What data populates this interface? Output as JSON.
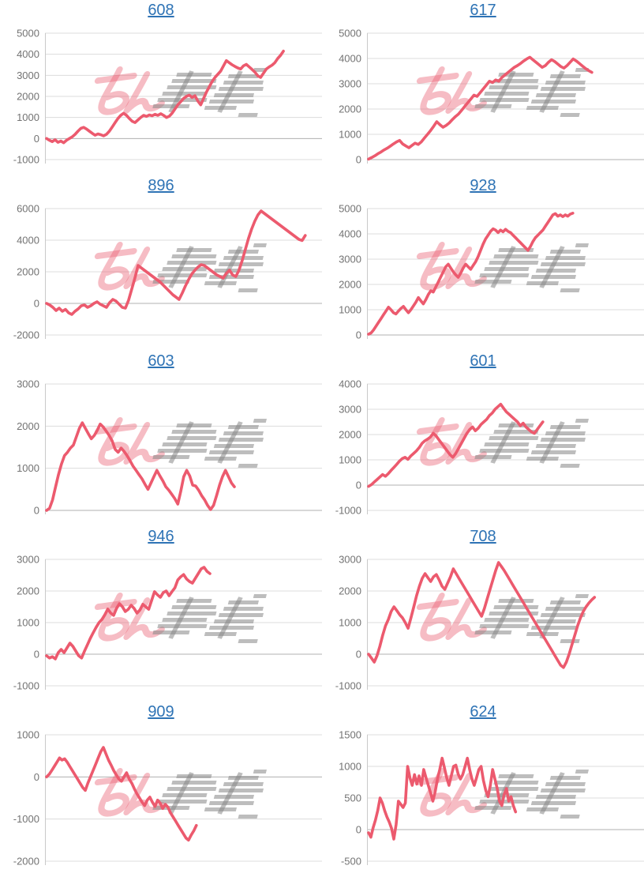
{
  "page": {
    "background": "#ffffff"
  },
  "watermark": {
    "text": "みんレポ",
    "pink_text": "みん",
    "gray_text": "レポ",
    "pink_color": "rgba(233,95,115,0.42)",
    "gray_color": "rgba(135,135,135,0.55)"
  },
  "style": {
    "line_color": "#ec5a6e",
    "grid_color": "#dcdcdc",
    "zero_line_color": "#b0b0b0",
    "axis_color": "#c9c9c9",
    "label_color": "#737373",
    "title_color": "#2e73b5"
  },
  "chart_data": [
    {
      "type": "line",
      "title": "608",
      "ylim": [
        -1000,
        5000
      ],
      "yticks": [
        5000,
        4000,
        3000,
        2000,
        1000,
        0,
        -1000
      ],
      "x_fill": 0.87,
      "values": [
        0,
        -80,
        -150,
        -60,
        -180,
        -120,
        -200,
        -80,
        0,
        80,
        200,
        350,
        480,
        530,
        450,
        350,
        250,
        160,
        220,
        180,
        130,
        200,
        350,
        550,
        750,
        950,
        1100,
        1200,
        1100,
        950,
        820,
        760,
        880,
        1000,
        1100,
        1050,
        1120,
        1080,
        1150,
        1100,
        1180,
        1100,
        1000,
        1060,
        1200,
        1400,
        1600,
        1750,
        1900,
        2000,
        2060,
        1950,
        2030,
        1780,
        1600,
        1900,
        2200,
        2450,
        2700,
        2900,
        3050,
        3200,
        3450,
        3700,
        3600,
        3500,
        3420,
        3350,
        3300,
        3450,
        3520,
        3400,
        3280,
        3150,
        2980,
        2900,
        3100,
        3300,
        3400,
        3480,
        3600,
        3800,
        3950,
        4150
      ]
    },
    {
      "type": "line",
      "title": "617",
      "ylim": [
        0,
        5000
      ],
      "yticks": [
        5000,
        4000,
        3000,
        2000,
        1000,
        0
      ],
      "x_fill": 0.82,
      "values": [
        20,
        80,
        150,
        230,
        300,
        380,
        450,
        530,
        620,
        700,
        760,
        620,
        540,
        470,
        560,
        650,
        600,
        700,
        850,
        1000,
        1150,
        1320,
        1500,
        1380,
        1280,
        1350,
        1450,
        1580,
        1700,
        1800,
        1950,
        2100,
        2250,
        2400,
        2550,
        2500,
        2650,
        2800,
        2950,
        3100,
        3050,
        3150,
        3100,
        3250,
        3350,
        3450,
        3550,
        3650,
        3720,
        3800,
        3900,
        3980,
        4050,
        3950,
        3850,
        3750,
        3650,
        3720,
        3850,
        3950,
        3880,
        3780,
        3680,
        3620,
        3720,
        3850,
        3980,
        3900,
        3800,
        3700,
        3600,
        3520,
        3450
      ]
    },
    {
      "type": "line",
      "title": "896",
      "ylim": [
        -2000,
        6000
      ],
      "yticks": [
        6000,
        4000,
        2000,
        0,
        -2000
      ],
      "x_fill": 0.95,
      "values": [
        0,
        -100,
        -250,
        -450,
        -300,
        -500,
        -380,
        -600,
        -700,
        -500,
        -350,
        -150,
        -100,
        -250,
        -150,
        0,
        100,
        -50,
        -150,
        -250,
        50,
        250,
        150,
        -50,
        -250,
        -300,
        200,
        900,
        1600,
        2400,
        2250,
        2100,
        1950,
        1800,
        1650,
        1500,
        1350,
        1150,
        950,
        750,
        550,
        400,
        250,
        650,
        1100,
        1500,
        1850,
        2100,
        2300,
        2450,
        2400,
        2250,
        2100,
        1950,
        1800,
        1700,
        1600,
        1900,
        2100,
        1800,
        1700,
        2100,
        2700,
        3400,
        4100,
        4700,
        5200,
        5600,
        5850,
        5700,
        5550,
        5400,
        5250,
        5100,
        4950,
        4800,
        4650,
        4500,
        4350,
        4200,
        4050,
        3980,
        4300
      ]
    },
    {
      "type": "line",
      "title": "928",
      "ylim": [
        0,
        5000
      ],
      "yticks": [
        5000,
        4000,
        3000,
        2000,
        1000,
        0
      ],
      "x_fill": 0.75,
      "values": [
        30,
        80,
        200,
        350,
        500,
        650,
        800,
        950,
        1100,
        1000,
        880,
        830,
        950,
        1050,
        1130,
        1000,
        880,
        1000,
        1150,
        1300,
        1480,
        1350,
        1230,
        1400,
        1600,
        1750,
        1700,
        1900,
        2100,
        2300,
        2500,
        2700,
        2800,
        2650,
        2500,
        2380,
        2280,
        2450,
        2650,
        2800,
        2700,
        2600,
        2750,
        2900,
        3100,
        3350,
        3600,
        3800,
        3950,
        4100,
        4200,
        4150,
        4050,
        4150,
        4080,
        4180,
        4100,
        4050,
        3950,
        3850,
        3750,
        3650,
        3550,
        3450,
        3350,
        3500,
        3700,
        3850,
        3950,
        4050,
        4150,
        4300,
        4450,
        4600,
        4750,
        4800,
        4700,
        4750,
        4680,
        4750,
        4700,
        4780,
        4820
      ]
    },
    {
      "type": "line",
      "title": "603",
      "ylim": [
        0,
        3000
      ],
      "yticks": [
        3000,
        2000,
        1000,
        0
      ],
      "x_fill": 0.69,
      "values": [
        0,
        50,
        250,
        550,
        850,
        1100,
        1300,
        1380,
        1480,
        1550,
        1750,
        1950,
        2080,
        1950,
        1820,
        1700,
        1780,
        1900,
        2050,
        1980,
        1880,
        1780,
        1650,
        1450,
        1380,
        1480,
        1400,
        1300,
        1180,
        1050,
        950,
        850,
        750,
        620,
        500,
        650,
        800,
        950,
        820,
        700,
        560,
        480,
        380,
        280,
        150,
        450,
        800,
        950,
        820,
        600,
        580,
        480,
        350,
        250,
        120,
        20,
        120,
        350,
        600,
        800,
        950,
        800,
        650,
        560
      ]
    },
    {
      "type": "line",
      "title": "601",
      "ylim": [
        -1000,
        4000
      ],
      "yticks": [
        4000,
        3000,
        2000,
        1000,
        0,
        -1000
      ],
      "x_fill": 0.64,
      "values": [
        -50,
        20,
        120,
        220,
        320,
        420,
        350,
        450,
        580,
        700,
        820,
        950,
        1050,
        1100,
        1020,
        1150,
        1250,
        1350,
        1480,
        1650,
        1750,
        1820,
        1900,
        2050,
        1950,
        1800,
        1650,
        1500,
        1350,
        1200,
        1100,
        1250,
        1450,
        1650,
        1850,
        2050,
        2200,
        2300,
        2150,
        2250,
        2400,
        2500,
        2600,
        2750,
        2850,
        3000,
        3100,
        3200,
        3050,
        2900,
        2800,
        2700,
        2600,
        2500,
        2350,
        2450,
        2300,
        2200,
        2100,
        2050,
        2200,
        2350,
        2500
      ]
    },
    {
      "type": "line",
      "title": "946",
      "ylim": [
        -1000,
        3000
      ],
      "yticks": [
        3000,
        2000,
        1000,
        0,
        -1000
      ],
      "x_fill": 0.6,
      "values": [
        -50,
        -120,
        -80,
        -150,
        50,
        150,
        50,
        200,
        350,
        250,
        100,
        -50,
        -120,
        100,
        300,
        500,
        680,
        850,
        1000,
        1100,
        1250,
        1430,
        1300,
        1230,
        1450,
        1600,
        1500,
        1350,
        1420,
        1550,
        1450,
        1300,
        1400,
        1580,
        1500,
        1420,
        1700,
        1980,
        1880,
        1800,
        1950,
        2000,
        1850,
        1980,
        2100,
        2350,
        2450,
        2520,
        2380,
        2300,
        2250,
        2400,
        2550,
        2700,
        2750,
        2620,
        2550
      ]
    },
    {
      "type": "line",
      "title": "708",
      "ylim": [
        -1000,
        3000
      ],
      "yticks": [
        3000,
        2000,
        1000,
        0,
        -1000
      ],
      "x_fill": 0.83,
      "values": [
        0,
        -120,
        -250,
        -50,
        250,
        600,
        900,
        1100,
        1350,
        1500,
        1380,
        1250,
        1150,
        1000,
        820,
        1150,
        1500,
        1850,
        2150,
        2400,
        2550,
        2420,
        2300,
        2450,
        2520,
        2350,
        2150,
        2050,
        2250,
        2450,
        2700,
        2550,
        2400,
        2250,
        2100,
        1950,
        1800,
        1650,
        1500,
        1350,
        1200,
        1450,
        1750,
        2050,
        2350,
        2650,
        2900,
        2780,
        2650,
        2500,
        2350,
        2200,
        2050,
        1900,
        1750,
        1600,
        1450,
        1300,
        1150,
        1000,
        850,
        700,
        550,
        400,
        250,
        100,
        -50,
        -200,
        -350,
        -420,
        -250,
        0,
        300,
        600,
        900,
        1150,
        1350,
        1500,
        1620,
        1720,
        1800
      ]
    },
    {
      "type": "line",
      "title": "909",
      "ylim": [
        -2000,
        1000
      ],
      "yticks": [
        1000,
        0,
        -1000,
        -2000
      ],
      "x_fill": 0.55,
      "values": [
        0,
        60,
        150,
        250,
        350,
        450,
        400,
        430,
        350,
        250,
        150,
        50,
        -50,
        -150,
        -250,
        -320,
        -150,
        0,
        150,
        300,
        450,
        600,
        700,
        550,
        400,
        280,
        150,
        50,
        -50,
        -100,
        0,
        100,
        -50,
        -150,
        -280,
        -400,
        -500,
        -600,
        -680,
        -550,
        -480,
        -600,
        -700,
        -550,
        -620,
        -750,
        -650,
        -720,
        -850,
        -950,
        -1050,
        -1150,
        -1250,
        -1350,
        -1450,
        -1500,
        -1380,
        -1280,
        -1150
      ]
    },
    {
      "type": "line",
      "title": "624",
      "ylim": [
        -500,
        1500
      ],
      "yticks": [
        1500,
        1000,
        500,
        0,
        -500
      ],
      "x_fill": 0.54,
      "values": [
        -50,
        -120,
        30,
        150,
        300,
        500,
        420,
        300,
        200,
        120,
        20,
        -150,
        80,
        450,
        400,
        350,
        420,
        1000,
        820,
        700,
        870,
        720,
        850,
        700,
        950,
        820,
        700,
        580,
        450,
        600,
        800,
        950,
        1130,
        980,
        820,
        700,
        850,
        1000,
        1020,
        880,
        800,
        870,
        1000,
        1130,
        950,
        800,
        700,
        820,
        950,
        1000,
        780,
        620,
        520,
        700,
        950,
        800,
        650,
        450,
        380,
        550,
        650,
        450,
        520,
        380,
        280
      ]
    }
  ]
}
